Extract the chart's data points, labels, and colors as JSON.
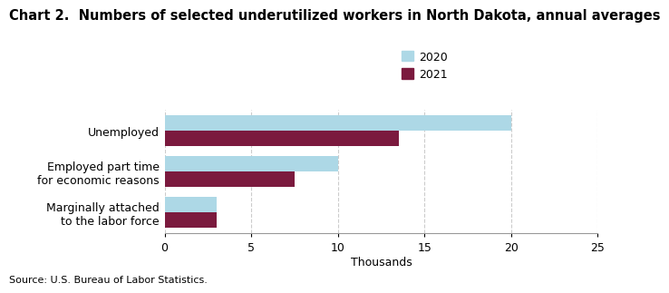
{
  "title": "Chart 2.  Numbers of selected underutilized workers in North Dakota, annual averages",
  "categories": [
    "Unemployed",
    "Employed part time\nfor economic reasons",
    "Marginally attached\nto the labor force"
  ],
  "values_2020": [
    20,
    10,
    3
  ],
  "values_2021": [
    13.5,
    7.5,
    3
  ],
  "color_2020": "#add8e6",
  "color_2021": "#7b1a3e",
  "xlim": [
    0,
    25
  ],
  "xticks": [
    0,
    5,
    10,
    15,
    20,
    25
  ],
  "xlabel": "Thousands",
  "legend_labels": [
    "2020",
    "2021"
  ],
  "source_text": "Source: U.S. Bureau of Labor Statistics.",
  "bar_height": 0.38,
  "title_fontsize": 10.5,
  "axis_fontsize": 9,
  "tick_fontsize": 9,
  "legend_fontsize": 9,
  "source_fontsize": 8
}
